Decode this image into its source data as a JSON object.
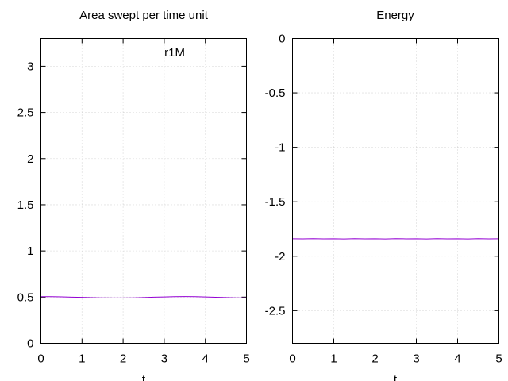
{
  "chart_data": [
    {
      "type": "line",
      "title": "Area swept per time unit",
      "xlabel": "t",
      "ylabel": "",
      "xlim": [
        0,
        5
      ],
      "ylim": [
        0,
        3.3
      ],
      "x_ticks": [
        "0",
        "1",
        "2",
        "3",
        "4",
        "5"
      ],
      "y_ticks": [
        "0",
        "0.5",
        "1",
        "1.5",
        "2",
        "2.5",
        "3"
      ],
      "grid": true,
      "legend": {
        "position": "top-right",
        "entries": [
          "r1M"
        ]
      },
      "series": [
        {
          "name": "r1M",
          "color": "#9400d3",
          "x": [
            0,
            0.25,
            0.5,
            0.75,
            1,
            1.25,
            1.5,
            1.75,
            2,
            2.25,
            2.5,
            2.75,
            3,
            3.25,
            3.5,
            3.75,
            4,
            4.25,
            4.5,
            4.75,
            5
          ],
          "y": [
            0.505,
            0.505,
            0.503,
            0.5,
            0.497,
            0.494,
            0.492,
            0.491,
            0.491,
            0.492,
            0.495,
            0.499,
            0.502,
            0.505,
            0.506,
            0.505,
            0.502,
            0.498,
            0.495,
            0.492,
            0.492
          ]
        }
      ]
    },
    {
      "type": "line",
      "title": "Energy",
      "xlabel": "t",
      "ylabel": "",
      "xlim": [
        0,
        5
      ],
      "ylim": [
        -2.8,
        0
      ],
      "x_ticks": [
        "0",
        "1",
        "2",
        "3",
        "4",
        "5"
      ],
      "y_ticks": [
        "0",
        "-0.5",
        "-1",
        "-1.5",
        "-2",
        "-2.5"
      ],
      "grid": true,
      "series": [
        {
          "color": "#9400d3",
          "x": [
            0,
            0.25,
            0.5,
            0.75,
            1,
            1.25,
            1.5,
            1.75,
            2,
            2.25,
            2.5,
            2.75,
            3,
            3.25,
            3.5,
            3.75,
            4,
            4.25,
            4.5,
            4.75,
            5
          ],
          "y": [
            -1.84,
            -1.841,
            -1.839,
            -1.841,
            -1.84,
            -1.842,
            -1.839,
            -1.841,
            -1.84,
            -1.842,
            -1.839,
            -1.841,
            -1.84,
            -1.842,
            -1.839,
            -1.841,
            -1.84,
            -1.842,
            -1.839,
            -1.841,
            -1.84
          ]
        }
      ]
    }
  ]
}
